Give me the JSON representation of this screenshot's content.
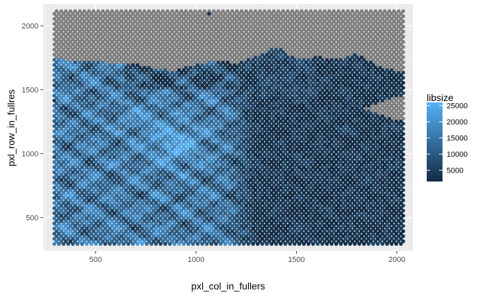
{
  "chart_data": {
    "type": "scatter",
    "title": "",
    "xlabel": "pxl_col_in_fullers",
    "ylabel": "pxl_row_in_fullres",
    "xlim": [
      240,
      2080
    ],
    "ylim": [
      240,
      2170
    ],
    "x_ticks": [
      500,
      1000,
      1500,
      2000
    ],
    "y_ticks": [
      500,
      1000,
      1500,
      2000
    ],
    "x_tick_labels": [
      "500",
      "1000",
      "1500",
      "2000"
    ],
    "y_tick_labels": [
      "500",
      "1000",
      "1500",
      "2000"
    ],
    "grid": true,
    "panel_background": "#ebebeb",
    "grid_color": "#ffffff",
    "na_color": "#7f7f7f",
    "spot_grid": {
      "x_range": [
        295,
        2035
      ],
      "y_range": [
        295,
        2115
      ],
      "x_step": 23,
      "y_step": 20
    },
    "tissue_boundary": [
      [
        295,
        1740
      ],
      [
        500,
        1720
      ],
      [
        700,
        1700
      ],
      [
        820,
        1660
      ],
      [
        900,
        1650
      ],
      [
        1000,
        1700
      ],
      [
        1100,
        1730
      ],
      [
        1200,
        1710
      ],
      [
        1300,
        1760
      ],
      [
        1400,
        1840
      ],
      [
        1450,
        1790
      ],
      [
        1500,
        1740
      ],
      [
        1600,
        1760
      ],
      [
        1700,
        1740
      ],
      [
        1800,
        1780
      ],
      [
        1900,
        1690
      ],
      [
        1950,
        1660
      ],
      [
        2035,
        1650
      ]
    ],
    "background_notch": {
      "y_range": [
        1260,
        1450
      ],
      "x_min": 1840
    },
    "outlier_point": {
      "x": 1065,
      "y": 2095,
      "libsize": 3500
    },
    "color_scale": {
      "variable": "libsize",
      "min": 1500,
      "max": 26000,
      "low_color": "#132b43",
      "high_color": "#56b1f7"
    },
    "legend": {
      "title": "libsize",
      "placement": "right",
      "ticks": [
        5000,
        10000,
        15000,
        20000,
        25000
      ],
      "tick_labels": [
        "5000",
        "10000",
        "15000",
        "20000",
        "25000"
      ]
    }
  }
}
